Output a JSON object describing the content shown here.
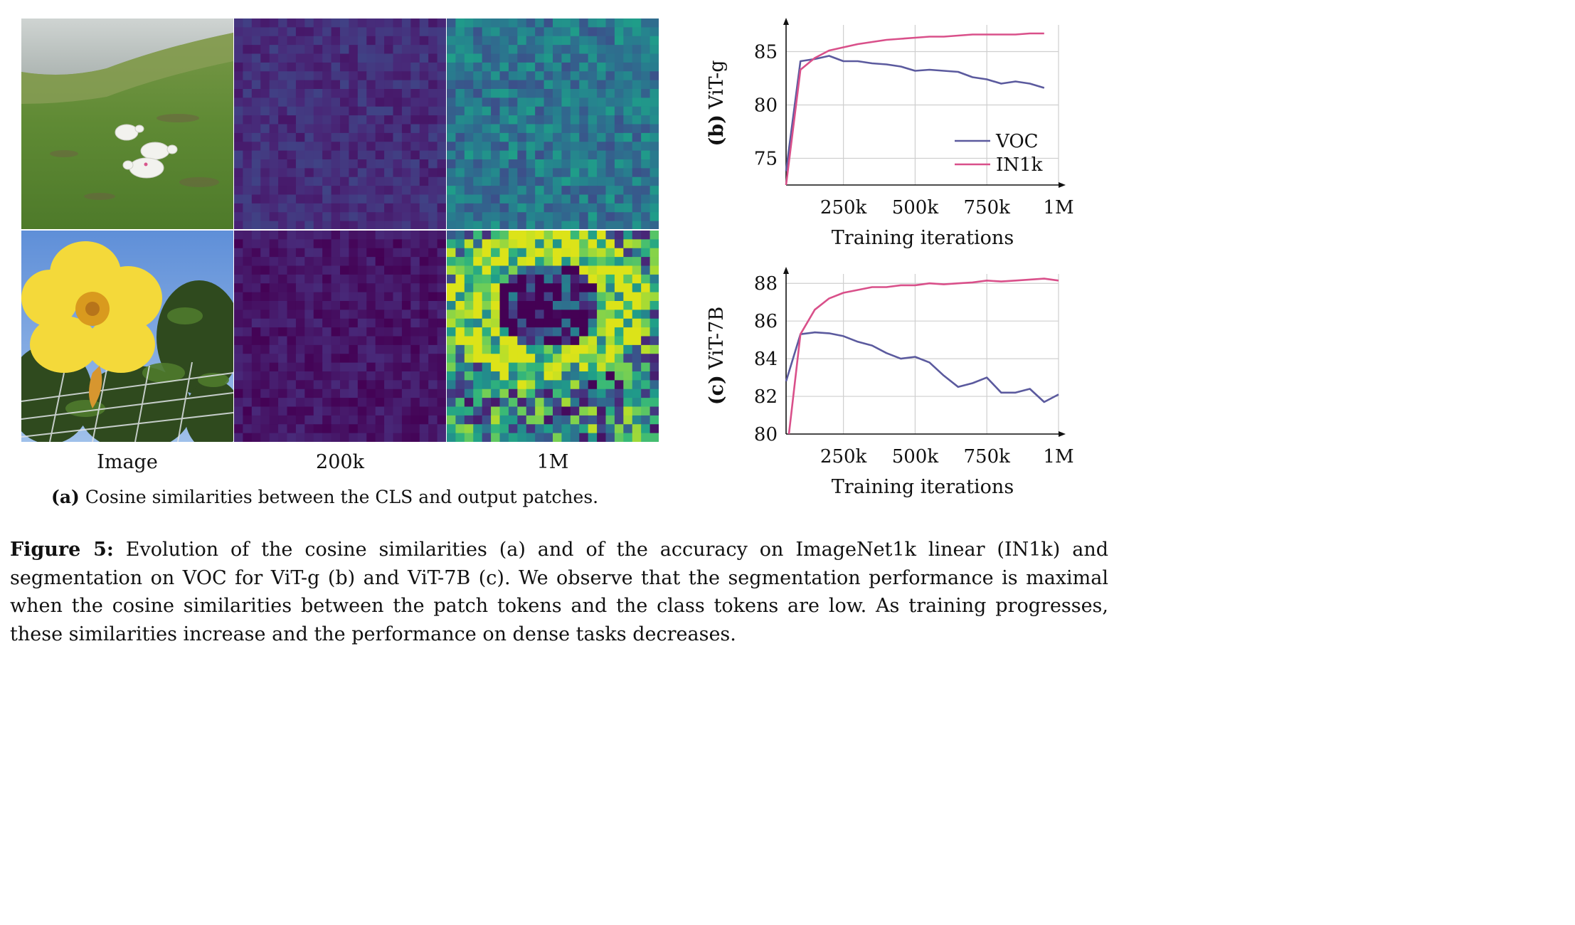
{
  "figure": {
    "label": "Figure 5:",
    "caption": "Evolution of the cosine similarities (a) and of the accuracy on ImageNet1k linear (IN1k) and segmentation on VOC for ViT-g (b) and ViT-7B (c). We observe that the segmentation performance is maximal when the cosine similarities between the patch tokens and the class tokens are low. As training progresses, these similarities increase and the performance on dense tasks decreases."
  },
  "panel_a": {
    "label": "(a)",
    "caption": "Cosine similarities between the CLS and output patches.",
    "columns": [
      "Image",
      "200k",
      "1M"
    ],
    "colors": {
      "low": "#440154",
      "mid": "#2a788e",
      "high": "#c8e020"
    }
  },
  "chart_data": [
    {
      "type": "line",
      "panel_label": "(b)",
      "ylabel": "ViT-g",
      "xlabel": "Training iterations",
      "xticks": [
        "250k",
        "500k",
        "750k",
        "1M"
      ],
      "xtick_values": [
        250000,
        500000,
        750000,
        1000000
      ],
      "yticks": [
        "75",
        "80",
        "85"
      ],
      "ytick_values": [
        75,
        80,
        85
      ],
      "xlim": [
        50000,
        1000000
      ],
      "ylim": [
        72.5,
        87.5
      ],
      "legend": "right",
      "grid": true,
      "series": [
        {
          "name": "VOC",
          "color": "#5b5a9e",
          "x": [
            50000,
            100000,
            150000,
            200000,
            250000,
            300000,
            350000,
            400000,
            450000,
            500000,
            550000,
            600000,
            650000,
            700000,
            750000,
            800000,
            850000,
            900000,
            950000
          ],
          "y": [
            73.8,
            84.1,
            84.3,
            84.6,
            84.1,
            84.1,
            83.9,
            83.8,
            83.6,
            83.2,
            83.3,
            83.2,
            83.1,
            82.6,
            82.4,
            82.0,
            82.2,
            82.0,
            81.6
          ]
        },
        {
          "name": "IN1k",
          "color": "#d9508a",
          "x": [
            50000,
            100000,
            150000,
            200000,
            250000,
            300000,
            350000,
            400000,
            450000,
            500000,
            550000,
            600000,
            650000,
            700000,
            750000,
            800000,
            850000,
            900000,
            950000
          ],
          "y": [
            72.5,
            83.3,
            84.4,
            85.1,
            85.4,
            85.7,
            85.9,
            86.1,
            86.2,
            86.3,
            86.4,
            86.4,
            86.5,
            86.6,
            86.6,
            86.6,
            86.6,
            86.7,
            86.7
          ]
        }
      ]
    },
    {
      "type": "line",
      "panel_label": "(c)",
      "ylabel": "ViT-7B",
      "xlabel": "Training iterations",
      "xticks": [
        "250k",
        "500k",
        "750k",
        "1M"
      ],
      "xtick_values": [
        250000,
        500000,
        750000,
        1000000
      ],
      "yticks": [
        "80",
        "82",
        "84",
        "86",
        "88"
      ],
      "ytick_values": [
        80,
        82,
        84,
        86,
        88
      ],
      "xlim": [
        50000,
        1000000
      ],
      "ylim": [
        80,
        88.5
      ],
      "legend": "none",
      "grid": true,
      "series": [
        {
          "name": "VOC",
          "color": "#5b5a9e",
          "x": [
            50000,
            100000,
            150000,
            200000,
            250000,
            300000,
            350000,
            400000,
            450000,
            500000,
            550000,
            600000,
            650000,
            700000,
            750000,
            800000,
            850000,
            900000,
            950000,
            1000000
          ],
          "y": [
            82.8,
            85.3,
            85.4,
            85.35,
            85.2,
            84.9,
            84.7,
            84.3,
            84.0,
            84.1,
            83.8,
            83.1,
            82.5,
            82.7,
            83.0,
            82.2,
            82.2,
            82.4,
            81.7,
            82.1
          ]
        },
        {
          "name": "IN1k",
          "color": "#d9508a",
          "x": [
            60000,
            100000,
            150000,
            200000,
            250000,
            300000,
            350000,
            400000,
            450000,
            500000,
            550000,
            600000,
            650000,
            700000,
            750000,
            800000,
            850000,
            900000,
            950000,
            1000000
          ],
          "y": [
            80.0,
            85.3,
            86.6,
            87.2,
            87.5,
            87.65,
            87.8,
            87.8,
            87.9,
            87.9,
            88.0,
            87.95,
            88.0,
            88.05,
            88.15,
            88.1,
            88.15,
            88.2,
            88.25,
            88.15
          ]
        }
      ]
    }
  ]
}
